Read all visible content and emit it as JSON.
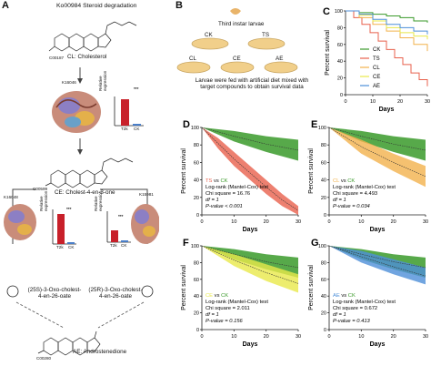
{
  "panelA": {
    "letter": "A",
    "title": "Ko00984 Steroid degradation",
    "compounds": {
      "cl": {
        "code": "C00187",
        "label": "CL: Cholesterol"
      },
      "ce": {
        "code": "C00599",
        "label": "CE: Cholest-4-en-3-one"
      },
      "left_intermediate": "(25S)-3-Oxo-cholest-4-en-26-oate",
      "right_intermediate": "(25R)-3-Oxo-cholest-4-en-26-oate",
      "ae": {
        "code": "C00280",
        "label": "AE: Androstenedione"
      }
    },
    "enzymes": {
      "top": "K16046",
      "left": "K16048",
      "right": "K15981"
    },
    "bar_charts": [
      {
        "id": "top",
        "ylabel": "Relative expression",
        "categories": [
          "T2k",
          "CK"
        ],
        "values": [
          1.0,
          0.05
        ],
        "sig": "***"
      },
      {
        "id": "left",
        "ylabel": "Relative expression",
        "categories": [
          "T2k",
          "CK"
        ],
        "values": [
          0.9,
          0.05
        ],
        "sig": "***"
      },
      {
        "id": "right",
        "ylabel": "Relative expression",
        "categories": [
          "T2k",
          "CK"
        ],
        "values": [
          0.35,
          0.05
        ],
        "sig": "***"
      }
    ]
  },
  "panelB": {
    "letter": "B",
    "larvae_label": "Third instar larvae",
    "dishes": [
      "CK",
      "TS",
      "CL",
      "CE",
      "AE"
    ],
    "caption": "Larvae were fed with artificial diet mixed with target compounds to obtain survival data"
  },
  "colors": {
    "CK": "#3a9a2a",
    "TS": "#e8604c",
    "CL": "#f2b24c",
    "CE": "#e8e84a",
    "AE": "#4d8fd8",
    "CK_pale": "#bfe6a8"
  },
  "chart_data": [
    {
      "id": "C",
      "letter": "C",
      "type": "line",
      "xlabel": "Days",
      "ylabel": "Percent survival",
      "xlim": [
        0,
        30
      ],
      "ylim": [
        0,
        100
      ],
      "xticks": [
        "0",
        "10",
        "20",
        "30"
      ],
      "yticks": [
        "0",
        "20",
        "40",
        "60",
        "80",
        "100"
      ],
      "legend": "right",
      "series": [
        {
          "name": "CK",
          "x": [
            0,
            5,
            10,
            15,
            20,
            25,
            30
          ],
          "y": [
            100,
            98,
            96,
            94,
            92,
            88,
            86
          ]
        },
        {
          "name": "TS",
          "x": [
            0,
            3,
            6,
            9,
            12,
            15,
            18,
            21,
            24,
            27,
            30
          ],
          "y": [
            100,
            92,
            84,
            74,
            64,
            54,
            44,
            36,
            26,
            18,
            10
          ]
        },
        {
          "name": "CL",
          "x": [
            0,
            5,
            10,
            15,
            20,
            25,
            30
          ],
          "y": [
            100,
            92,
            84,
            76,
            68,
            60,
            52
          ]
        },
        {
          "name": "CE",
          "x": [
            0,
            5,
            10,
            15,
            20,
            25,
            30
          ],
          "y": [
            100,
            95,
            88,
            80,
            74,
            70,
            66
          ]
        },
        {
          "name": "AE",
          "x": [
            0,
            5,
            10,
            15,
            20,
            25,
            30
          ],
          "y": [
            100,
            96,
            90,
            84,
            80,
            76,
            72
          ]
        }
      ]
    },
    {
      "id": "D",
      "letter": "D",
      "type": "area",
      "xlabel": "Days",
      "ylabel": "Percent survival",
      "xlim": [
        0,
        30
      ],
      "ylim": [
        0,
        100
      ],
      "xticks": [
        "0",
        "10",
        "20",
        "30"
      ],
      "yticks": [
        "0",
        "20",
        "40",
        "60",
        "80",
        "100"
      ],
      "treat": "TS",
      "stats": {
        "vs": "vs",
        "test": "Log-rank (Mantel-Cox) test",
        "chi": "Chi square = 16.76",
        "df": "df = 1",
        "p": "P-value < 0.001"
      },
      "series": [
        {
          "name": "CK",
          "x": [
            0,
            10,
            20,
            30
          ],
          "y": [
            100,
            96,
            90,
            86
          ],
          "lower": [
            100,
            84,
            72,
            62
          ]
        },
        {
          "name": "TS",
          "x": [
            0,
            5,
            10,
            15,
            20,
            25,
            30
          ],
          "y": [
            100,
            88,
            72,
            56,
            40,
            24,
            10
          ],
          "lower": [
            100,
            76,
            56,
            40,
            24,
            10,
            0
          ]
        }
      ]
    },
    {
      "id": "E",
      "letter": "E",
      "type": "area",
      "xlabel": "Days",
      "ylabel": "Percent survival",
      "xlim": [
        0,
        30
      ],
      "ylim": [
        0,
        100
      ],
      "xticks": [
        "0",
        "10",
        "20",
        "30"
      ],
      "yticks": [
        "0",
        "20",
        "40",
        "60",
        "80",
        "100"
      ],
      "treat": "CL",
      "stats": {
        "vs": "vs",
        "test": "Log-rank (Mantel-Cox) test",
        "chi": "Chi square = 4.493",
        "df": "df = 1",
        "p": "P-value = 0.034"
      },
      "series": [
        {
          "name": "CK",
          "x": [
            0,
            10,
            20,
            30
          ],
          "y": [
            100,
            96,
            90,
            86
          ],
          "lower": [
            100,
            84,
            72,
            62
          ]
        },
        {
          "name": "CL",
          "x": [
            0,
            10,
            20,
            30
          ],
          "y": [
            100,
            86,
            70,
            56
          ],
          "lower": [
            100,
            70,
            50,
            32
          ]
        }
      ]
    },
    {
      "id": "F",
      "letter": "F",
      "type": "area",
      "xlabel": "Days",
      "ylabel": "Percent survival",
      "xlim": [
        0,
        30
      ],
      "ylim": [
        0,
        100
      ],
      "xticks": [
        "0",
        "10",
        "20",
        "30"
      ],
      "yticks": [
        "0",
        "20",
        "40",
        "60",
        "80",
        "100"
      ],
      "treat": "CE",
      "stats": {
        "vs": "vs",
        "test": "Log-rank (Mantel-Cox) test",
        "chi": "Chi square = 2.011",
        "df": "df = 1",
        "p": "P-value = 0.156"
      },
      "series": [
        {
          "name": "CK",
          "x": [
            0,
            10,
            20,
            30
          ],
          "y": [
            100,
            96,
            90,
            86
          ],
          "lower": [
            100,
            84,
            72,
            62
          ]
        },
        {
          "name": "CE",
          "x": [
            0,
            10,
            20,
            30
          ],
          "y": [
            100,
            90,
            78,
            66
          ],
          "lower": [
            100,
            76,
            58,
            44
          ]
        }
      ]
    },
    {
      "id": "G",
      "letter": "G",
      "type": "area",
      "xlabel": "Days",
      "ylabel": "Percent survival",
      "xlim": [
        0,
        30
      ],
      "ylim": [
        0,
        100
      ],
      "xticks": [
        "0",
        "10",
        "20",
        "30"
      ],
      "yticks": [
        "0",
        "20",
        "40",
        "60",
        "80",
        "100"
      ],
      "treat": "AE",
      "stats": {
        "vs": "vs",
        "test": "Log-rank (Mantel-Cox) test",
        "chi": "Chi square = 0.672",
        "df": "df = 1",
        "p": "P-value = 0.413"
      },
      "series": [
        {
          "name": "CK",
          "x": [
            0,
            10,
            20,
            30
          ],
          "y": [
            100,
            96,
            90,
            86
          ],
          "lower": [
            100,
            84,
            72,
            62
          ]
        },
        {
          "name": "AE",
          "x": [
            0,
            10,
            20,
            30
          ],
          "y": [
            100,
            94,
            84,
            74
          ],
          "lower": [
            100,
            80,
            66,
            54
          ]
        }
      ]
    }
  ]
}
